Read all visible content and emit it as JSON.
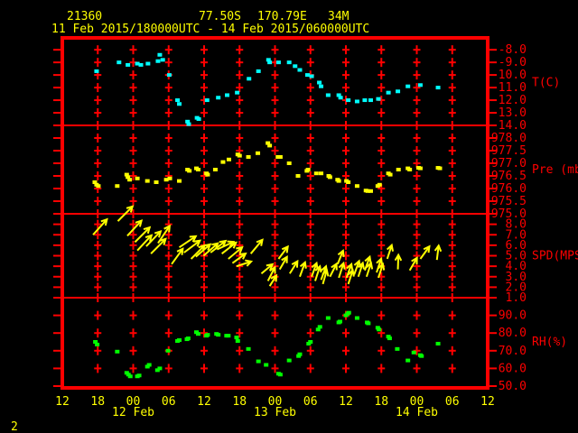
{
  "header": {
    "station_id": "21360",
    "latitude": "77.50S",
    "longitude": "170.79E",
    "elevation": "34M",
    "period": "11 Feb 2015/180000UTC - 14 Feb 2015/060000UTC"
  },
  "page_number": "2",
  "colors": {
    "background": "#000000",
    "grid": "#ff0000",
    "axis_text": "#ff0000",
    "header_text": "#ffff00",
    "temperature": "#00ffff",
    "pressure": "#ffff00",
    "wind": "#ffff00",
    "humidity": "#00ff00"
  },
  "x_axis": {
    "t_unit": "hours after 11 Feb 2015 12:00 UTC",
    "hour_ticks": [
      {
        "t": 0,
        "label": "12"
      },
      {
        "t": 6,
        "label": "18"
      },
      {
        "t": 12,
        "label": "00"
      },
      {
        "t": 18,
        "label": "06"
      },
      {
        "t": 24,
        "label": "12"
      },
      {
        "t": 30,
        "label": "18"
      },
      {
        "t": 36,
        "label": "00"
      },
      {
        "t": 42,
        "label": "06"
      },
      {
        "t": 48,
        "label": "12"
      },
      {
        "t": 54,
        "label": "18"
      },
      {
        "t": 60,
        "label": "00"
      },
      {
        "t": 66,
        "label": "06"
      },
      {
        "t": 72,
        "label": "12"
      }
    ],
    "date_labels": [
      {
        "t": 12,
        "label": "12 Feb"
      },
      {
        "t": 36,
        "label": "13 Feb"
      },
      {
        "t": 60,
        "label": "14 Feb"
      }
    ]
  },
  "chart_data": [
    {
      "type": "scatter",
      "name": "temperature",
      "axis_label": "T(C)",
      "color": "#00ffff",
      "ylim": [
        -14.0,
        -7.2
      ],
      "yticks": [
        -8,
        -9,
        -10,
        -11,
        -12,
        -13,
        -14
      ],
      "ytick_labels": [
        "-8.0",
        "-9.0",
        "-10.0",
        "-11.0",
        "-12.0",
        "-13.0",
        "-14.0"
      ],
      "plus_rows": [
        -8,
        -9,
        -10,
        -11,
        -12,
        -13
      ],
      "points": [
        [
          5.8,
          -9.7
        ],
        [
          9.6,
          -9.0
        ],
        [
          11.1,
          -9.2
        ],
        [
          12.7,
          -9.1
        ],
        [
          13.3,
          -9.2
        ],
        [
          14.5,
          -9.1
        ],
        [
          16.2,
          -8.9
        ],
        [
          16.5,
          -8.4
        ],
        [
          17.0,
          -8.8
        ],
        [
          18.1,
          -10.0
        ],
        [
          19.5,
          -12.0
        ],
        [
          19.8,
          -12.3
        ],
        [
          21.2,
          -13.7
        ],
        [
          21.4,
          -13.9
        ],
        [
          22.8,
          -13.4
        ],
        [
          23.1,
          -13.5
        ],
        [
          24.5,
          -12.0
        ],
        [
          26.4,
          -11.8
        ],
        [
          27.9,
          -11.6
        ],
        [
          29.6,
          -11.4
        ],
        [
          31.6,
          -10.3
        ],
        [
          33.2,
          -9.7
        ],
        [
          34.9,
          -8.8
        ],
        [
          35.1,
          -9.0
        ],
        [
          36.6,
          -9.0
        ],
        [
          38.4,
          -9.0
        ],
        [
          39.4,
          -9.3
        ],
        [
          40.2,
          -9.6
        ],
        [
          41.5,
          -10.0
        ],
        [
          42.2,
          -10.1
        ],
        [
          43.5,
          -10.6
        ],
        [
          43.8,
          -10.9
        ],
        [
          45.0,
          -11.6
        ],
        [
          46.8,
          -11.6
        ],
        [
          47.1,
          -11.8
        ],
        [
          48.4,
          -12.0
        ],
        [
          49.9,
          -12.1
        ],
        [
          51.2,
          -12.0
        ],
        [
          52.2,
          -12.0
        ],
        [
          53.5,
          -11.9
        ],
        [
          55.2,
          -11.4
        ],
        [
          56.8,
          -11.3
        ],
        [
          58.5,
          -10.9
        ],
        [
          60.6,
          -10.8
        ],
        [
          63.6,
          -11.0
        ]
      ]
    },
    {
      "type": "scatter",
      "name": "pressure",
      "axis_label": "Pre (mb)",
      "color": "#ffff00",
      "ylim": [
        975.0,
        978.5
      ],
      "yticks": [
        978.0,
        977.5,
        977.0,
        976.5,
        976.0,
        975.5,
        975.0
      ],
      "ytick_labels": [
        "978.0",
        "977.5",
        "977.0",
        "976.5",
        "976.0",
        "975.5",
        "975.0"
      ],
      "plus_rows": [
        978.0,
        977.5,
        977.0,
        976.5,
        976.0,
        975.5
      ],
      "points": [
        [
          5.5,
          976.25
        ],
        [
          5.8,
          976.15
        ],
        [
          6.1,
          976.1
        ],
        [
          9.3,
          976.1
        ],
        [
          10.9,
          976.55
        ],
        [
          11.1,
          976.45
        ],
        [
          11.4,
          976.35
        ],
        [
          12.7,
          976.4
        ],
        [
          14.4,
          976.3
        ],
        [
          15.9,
          976.25
        ],
        [
          17.6,
          976.35
        ],
        [
          18.2,
          976.4
        ],
        [
          19.8,
          976.3
        ],
        [
          21.2,
          976.75
        ],
        [
          21.5,
          976.7
        ],
        [
          22.7,
          976.8
        ],
        [
          23.0,
          976.75
        ],
        [
          24.4,
          976.6
        ],
        [
          24.6,
          976.55
        ],
        [
          25.9,
          976.75
        ],
        [
          27.2,
          977.05
        ],
        [
          28.2,
          977.15
        ],
        [
          29.7,
          977.35
        ],
        [
          30.0,
          977.3
        ],
        [
          31.5,
          977.25
        ],
        [
          33.1,
          977.4
        ],
        [
          34.8,
          977.8
        ],
        [
          35.1,
          977.7
        ],
        [
          36.5,
          977.25
        ],
        [
          36.9,
          977.25
        ],
        [
          38.4,
          977.0
        ],
        [
          39.9,
          976.5
        ],
        [
          41.4,
          976.7
        ],
        [
          41.6,
          976.75
        ],
        [
          43.0,
          976.6
        ],
        [
          43.8,
          976.6
        ],
        [
          45.1,
          976.5
        ],
        [
          45.3,
          976.45
        ],
        [
          46.6,
          976.35
        ],
        [
          46.8,
          976.3
        ],
        [
          48.1,
          976.3
        ],
        [
          48.4,
          976.25
        ],
        [
          49.9,
          976.1
        ],
        [
          51.4,
          975.92
        ],
        [
          51.7,
          975.9
        ],
        [
          52.2,
          975.9
        ],
        [
          53.4,
          976.1
        ],
        [
          53.7,
          976.15
        ],
        [
          55.2,
          976.6
        ],
        [
          55.5,
          976.55
        ],
        [
          56.9,
          976.75
        ],
        [
          58.5,
          976.8
        ],
        [
          58.8,
          976.75
        ],
        [
          60.3,
          976.82
        ],
        [
          60.6,
          976.8
        ],
        [
          63.6,
          976.82
        ],
        [
          63.9,
          976.8
        ]
      ]
    },
    {
      "type": "vector",
      "name": "wind",
      "axis_label": "SPD(MPS)",
      "color": "#ffff00",
      "ylim": [
        1.0,
        9.0
      ],
      "yticks": [
        8,
        7,
        6,
        5,
        4,
        3,
        2,
        1
      ],
      "ytick_labels": [
        "8.0",
        "7.0",
        "6.0",
        "5.0",
        "4.0",
        "3.0",
        "2.0",
        "1.0"
      ],
      "plus_rows": [
        8,
        7,
        6,
        5,
        4,
        3,
        2
      ],
      "arrow_columns": [
        "t_hours",
        "speed_mps",
        "direction_deg_up_from_right",
        "length_px"
      ],
      "arrows": [
        [
          5.2,
          7.0,
          48,
          23
        ],
        [
          9.4,
          8.3,
          45,
          23
        ],
        [
          11.0,
          6.9,
          47,
          23
        ],
        [
          12.3,
          6.3,
          45,
          23
        ],
        [
          12.7,
          5.5,
          47,
          23
        ],
        [
          14.2,
          5.9,
          46,
          23
        ],
        [
          15.0,
          5.2,
          45,
          23
        ],
        [
          16.2,
          6.2,
          56,
          23
        ],
        [
          18.5,
          4.2,
          54,
          21
        ],
        [
          19.8,
          5.8,
          34,
          22
        ],
        [
          20.6,
          5.3,
          37,
          22
        ],
        [
          21.8,
          4.7,
          45,
          21
        ],
        [
          22.6,
          4.9,
          41,
          21
        ],
        [
          23.9,
          5.0,
          41,
          21
        ],
        [
          25.1,
          5.3,
          38,
          21
        ],
        [
          26.2,
          5.6,
          25,
          20
        ],
        [
          27.0,
          5.2,
          38,
          20
        ],
        [
          28.1,
          4.7,
          40,
          20
        ],
        [
          28.8,
          4.3,
          36,
          18
        ],
        [
          29.5,
          4.0,
          18,
          17
        ],
        [
          31.9,
          5.2,
          50,
          20
        ],
        [
          33.7,
          3.3,
          40,
          16
        ],
        [
          34.8,
          2.6,
          63,
          17
        ],
        [
          35.1,
          2.1,
          58,
          14
        ],
        [
          36.6,
          4.7,
          53,
          17
        ],
        [
          36.8,
          3.7,
          60,
          16
        ],
        [
          38.5,
          3.3,
          58,
          16
        ],
        [
          40.2,
          3.0,
          70,
          17
        ],
        [
          42.2,
          3.0,
          70,
          16
        ],
        [
          42.8,
          2.6,
          72,
          17
        ],
        [
          43.8,
          2.7,
          70,
          16
        ],
        [
          44.1,
          2.3,
          74,
          16
        ],
        [
          45.3,
          3.0,
          63,
          16
        ],
        [
          46.6,
          4.2,
          68,
          16
        ],
        [
          46.8,
          2.9,
          72,
          17
        ],
        [
          48.1,
          2.9,
          70,
          16
        ],
        [
          48.4,
          2.3,
          72,
          16
        ],
        [
          49.4,
          3.2,
          70,
          16
        ],
        [
          50.1,
          3.0,
          72,
          16
        ],
        [
          51.2,
          3.6,
          70,
          16
        ],
        [
          51.5,
          3.0,
          72,
          16
        ],
        [
          53.2,
          3.4,
          72,
          16
        ],
        [
          53.5,
          2.9,
          72,
          16
        ],
        [
          55.0,
          4.7,
          72,
          16
        ],
        [
          56.8,
          3.7,
          88,
          16
        ],
        [
          58.8,
          3.6,
          60,
          16
        ],
        [
          60.6,
          4.7,
          54,
          17
        ],
        [
          63.4,
          4.6,
          83,
          16
        ]
      ]
    },
    {
      "type": "scatter",
      "name": "humidity",
      "axis_label": "RH(%)",
      "color": "#00ff00",
      "ylim": [
        50,
        100
      ],
      "yticks": [
        90,
        80,
        70,
        60,
        50
      ],
      "ytick_labels": [
        "90.0",
        "80.0",
        "70.0",
        "60.0",
        "50.0"
      ],
      "plus_rows": [
        90,
        80,
        70,
        60
      ],
      "points": [
        [
          5.6,
          75
        ],
        [
          5.9,
          73.5
        ],
        [
          9.3,
          69.5
        ],
        [
          10.9,
          57.5
        ],
        [
          11.2,
          56.5
        ],
        [
          11.5,
          55.5
        ],
        [
          12.7,
          55.5
        ],
        [
          13.0,
          56
        ],
        [
          14.4,
          61
        ],
        [
          14.7,
          62
        ],
        [
          16.1,
          59
        ],
        [
          16.5,
          60
        ],
        [
          17.9,
          70
        ],
        [
          19.5,
          75.5
        ],
        [
          19.8,
          76
        ],
        [
          21.1,
          76.5
        ],
        [
          21.3,
          77
        ],
        [
          22.7,
          80.5
        ],
        [
          23.0,
          79.5
        ],
        [
          24.4,
          78.5
        ],
        [
          24.6,
          79
        ],
        [
          26.1,
          79.5
        ],
        [
          26.4,
          79
        ],
        [
          27.8,
          78.5
        ],
        [
          28.1,
          78.5
        ],
        [
          29.5,
          77.5
        ],
        [
          29.7,
          75.5
        ],
        [
          31.5,
          71
        ],
        [
          33.2,
          64
        ],
        [
          34.5,
          62
        ],
        [
          36.6,
          57
        ],
        [
          36.9,
          56.5
        ],
        [
          38.4,
          64.5
        ],
        [
          40.0,
          67
        ],
        [
          40.2,
          68
        ],
        [
          41.7,
          74
        ],
        [
          42.0,
          75
        ],
        [
          43.3,
          82
        ],
        [
          43.6,
          83.5
        ],
        [
          45.0,
          88.5
        ],
        [
          46.8,
          86
        ],
        [
          47.0,
          86.5
        ],
        [
          48.0,
          90
        ],
        [
          48.3,
          91
        ],
        [
          48.5,
          91.5
        ],
        [
          49.9,
          88.5
        ],
        [
          51.6,
          86
        ],
        [
          51.8,
          85.5
        ],
        [
          53.4,
          83
        ],
        [
          53.6,
          82
        ],
        [
          55.2,
          78
        ],
        [
          55.4,
          77
        ],
        [
          56.7,
          71
        ],
        [
          58.5,
          64.5
        ],
        [
          59.5,
          69
        ],
        [
          60.6,
          67.5
        ],
        [
          60.8,
          67
        ],
        [
          63.6,
          74
        ]
      ]
    }
  ]
}
